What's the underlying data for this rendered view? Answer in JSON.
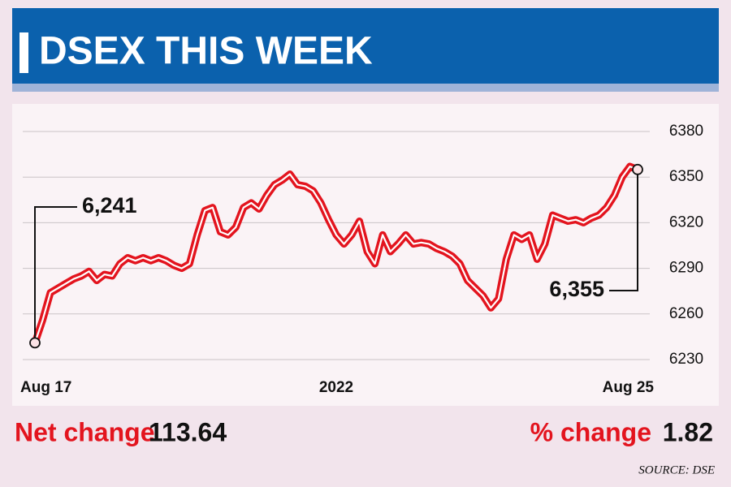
{
  "chart_data": {
    "type": "line",
    "title": "DSEX THIS WEEK",
    "categories": [
      "Aug 17",
      null,
      null,
      null,
      null,
      null,
      null,
      null,
      null,
      null,
      null,
      null,
      null,
      null,
      null,
      null,
      null,
      null,
      null,
      null,
      null,
      null,
      null,
      null,
      null,
      null,
      null,
      null,
      null,
      null,
      null,
      null,
      null,
      null,
      null,
      null,
      null,
      null,
      null,
      "2022",
      null,
      null,
      null,
      null,
      null,
      null,
      null,
      null,
      null,
      null,
      null,
      null,
      null,
      null,
      null,
      null,
      null,
      null,
      null,
      null,
      null,
      null,
      null,
      null,
      null,
      null,
      null,
      null,
      null,
      null,
      null,
      null,
      null,
      null,
      null,
      null,
      null,
      null,
      "Aug 25"
    ],
    "series": [
      {
        "name": "DSEX",
        "color": "#e3141e",
        "values": [
          6241,
          6256,
          6274,
          6277,
          6280,
          6283,
          6285,
          6288,
          6282,
          6286,
          6285,
          6293,
          6297,
          6295,
          6297,
          6295,
          6297,
          6295,
          6292,
          6290,
          6293,
          6312,
          6328,
          6330,
          6314,
          6312,
          6317,
          6330,
          6333,
          6329,
          6338,
          6345,
          6348,
          6352,
          6345,
          6344,
          6341,
          6333,
          6322,
          6312,
          6306,
          6312,
          6321,
          6301,
          6293,
          6312,
          6301,
          6306,
          6312,
          6306,
          6307,
          6306,
          6303,
          6301,
          6298,
          6293,
          6282,
          6277,
          6272,
          6264,
          6270,
          6296,
          6312,
          6309,
          6312,
          6296,
          6306,
          6325,
          6323,
          6321,
          6322,
          6320,
          6323,
          6325,
          6330,
          6338,
          6350,
          6357,
          6355
        ],
        "value_labels": [
          "6,241",
          null,
          null,
          null,
          null,
          null,
          null,
          null,
          null,
          null,
          null,
          null,
          null,
          null,
          null,
          null,
          null,
          null,
          null,
          null,
          null,
          null,
          null,
          null,
          null,
          null,
          null,
          null,
          null,
          null,
          null,
          null,
          null,
          null,
          null,
          null,
          null,
          null,
          null,
          null,
          null,
          null,
          null,
          null,
          null,
          null,
          null,
          null,
          null,
          null,
          null,
          null,
          null,
          null,
          null,
          null,
          null,
          null,
          null,
          null,
          null,
          null,
          null,
          null,
          null,
          null,
          null,
          null,
          null,
          null,
          null,
          null,
          null,
          null,
          null,
          null,
          null,
          null,
          "6,355"
        ]
      }
    ],
    "ylim": [
      6230,
      6380
    ],
    "yticks": [
      6230,
      6260,
      6290,
      6320,
      6350,
      6380
    ],
    "grid": true
  },
  "summary": [
    {
      "label": "Net change",
      "value": 113.64
    },
    {
      "label": "% change",
      "value": 1.82
    }
  ],
  "source": "SOURCE: DSE"
}
